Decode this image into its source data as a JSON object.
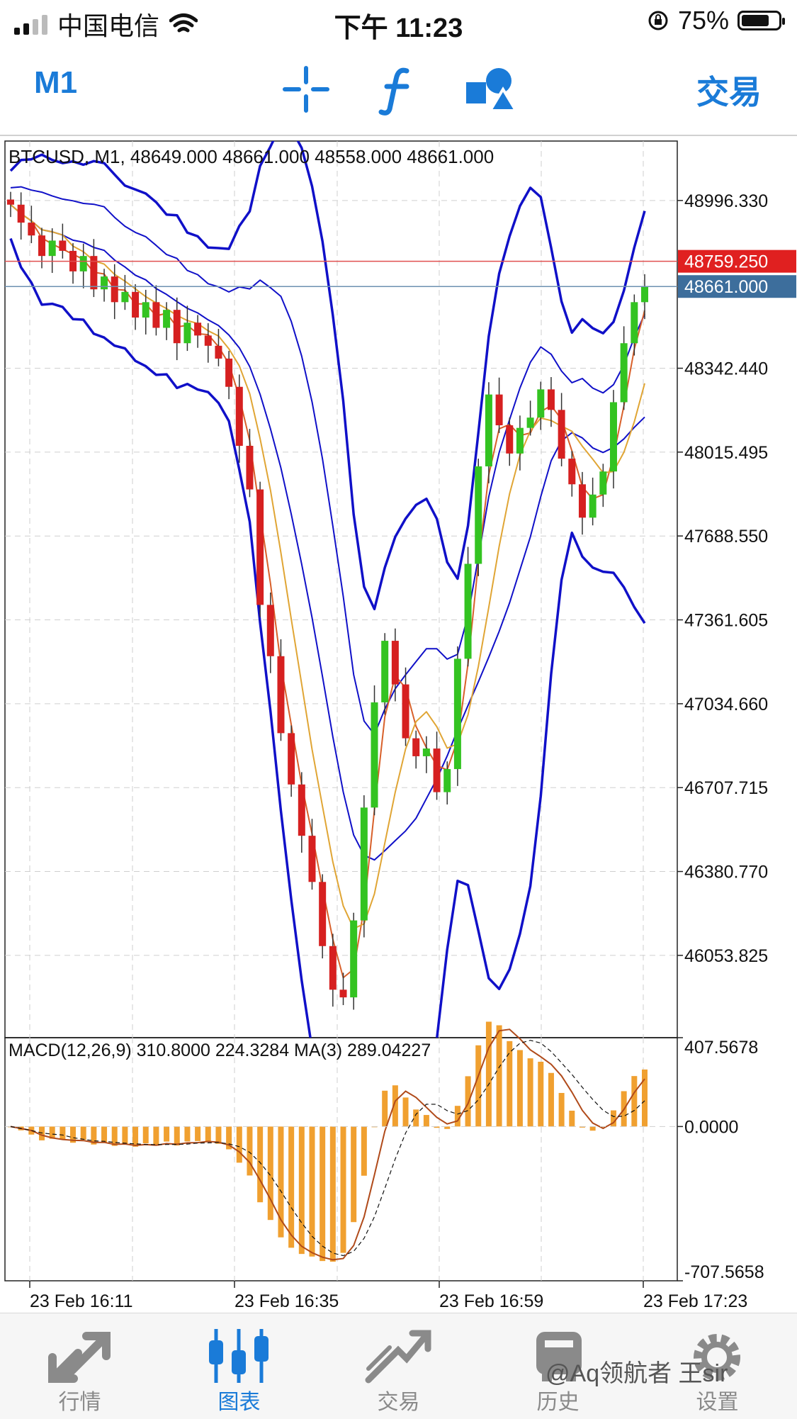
{
  "status_bar": {
    "carrier": "中国电信",
    "time": "下午 11:23",
    "battery": "75%",
    "battery_level": 0.75
  },
  "toolbar": {
    "period": "M1",
    "trade_label": "交易",
    "buttons": [
      "crosshair-icon",
      "indicator-f-icon",
      "objects-icon"
    ]
  },
  "chart_data": {
    "type": "candlestick",
    "title": "BTCUSD, M1, 48649.000 48661.000 48558.000 48661.000",
    "price_axis_ticks": [
      "48996.330",
      "48342.440",
      "48015.495",
      "47688.550",
      "47361.605",
      "47034.660",
      "46707.715",
      "46380.770",
      "46053.825"
    ],
    "ask_price": "48759.250",
    "bid_price": "48661.000",
    "time_labels": [
      "23 Feb 16:11",
      "23 Feb 16:35",
      "23 Feb 16:59",
      "23 Feb 17:23"
    ],
    "ylim": [
      45733,
      49228
    ],
    "colors": {
      "bull": "#33c321",
      "bear": "#d62020",
      "band": "#1010c8",
      "ma_fast": "#d8602a",
      "ma_slow": "#e0a534",
      "macd_bar": "#f0a030",
      "ask_line": "#e05050",
      "bid_line": "#6d90b0",
      "ask_tag": "#e02020",
      "bid_tag": "#3d6e9c"
    },
    "candles_close": [
      48980,
      48910,
      48860,
      48780,
      48840,
      48800,
      48720,
      48780,
      48650,
      48700,
      48600,
      48640,
      48540,
      48600,
      48500,
      48570,
      48440,
      48520,
      48470,
      48430,
      48380,
      48270,
      48040,
      47870,
      47420,
      47220,
      46920,
      46720,
      46520,
      46340,
      46090,
      45920,
      45890,
      46190,
      46630,
      47040,
      47280,
      47110,
      46900,
      46830,
      46860,
      46690,
      46780,
      47210,
      47580,
      47960,
      48240,
      48120,
      48010,
      48110,
      48150,
      48260,
      48180,
      47990,
      47890,
      47760,
      47850,
      47940,
      48210,
      48440,
      48600,
      48661
    ],
    "macd": {
      "label": "MACD(12,26,9) 310.8000 224.3284 MA(3) 289.04227",
      "ticks": [
        "407.5678",
        "0.0000",
        "-707.5658"
      ],
      "range": [
        -707.5658,
        407.5678
      ]
    }
  },
  "tab_bar": {
    "items": [
      {
        "label": "行情",
        "icon": "quotes-icon"
      },
      {
        "label": "图表",
        "icon": "chart-icon"
      },
      {
        "label": "交易",
        "icon": "trade-icon"
      },
      {
        "label": "历史",
        "icon": "history-icon"
      },
      {
        "label": "设置",
        "icon": "settings-icon"
      }
    ],
    "active": 1
  },
  "watermark": "@Aq领航者 王sir"
}
